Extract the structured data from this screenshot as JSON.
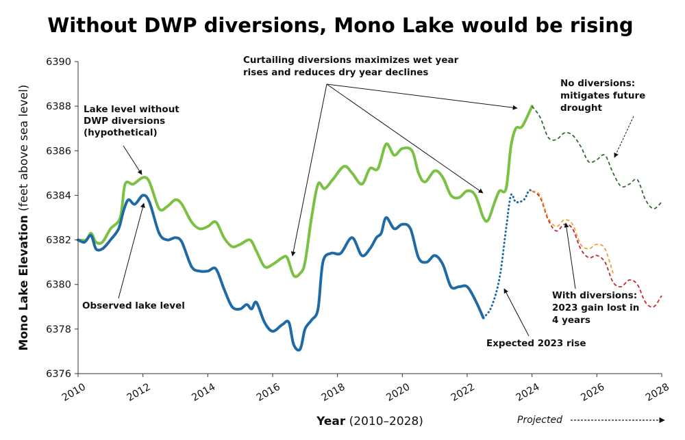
{
  "chart_data": {
    "type": "line",
    "title": "Without DWP diversions, Mono Lake would be rising",
    "xlabel_bold": "Year",
    "xlabel_rest": " (2010–2028)",
    "ylabel_bold": "Mono Lake Elevation",
    "ylabel_rest": " (feet above sea level)",
    "xlim": [
      2010,
      2028
    ],
    "ylim": [
      6376,
      6390
    ],
    "x_ticks": [
      "2010",
      "2012",
      "2014",
      "2016",
      "2018",
      "2020",
      "2022",
      "2024",
      "2026",
      "2028"
    ],
    "y_ticks": [
      "6376",
      "6378",
      "6380",
      "6382",
      "6384",
      "6386",
      "6388",
      "6390"
    ],
    "projected_label": "Projected",
    "colors": {
      "without_diversions": "#7ac143",
      "observed": "#1f6aa5",
      "projection_no_diversions": "#2e6b2e",
      "projection_with_diversions": "#cc2229",
      "projection_with_diversions_alt": "#f0a030"
    },
    "series": [
      {
        "key": "without",
        "style": "solid",
        "values": [
          [
            2010.0,
            6382.0
          ],
          [
            2010.25,
            6382.0
          ],
          [
            2010.4,
            6382.3
          ],
          [
            2010.55,
            6381.9
          ],
          [
            2010.75,
            6381.9
          ],
          [
            2011.0,
            6382.5
          ],
          [
            2011.3,
            6383.0
          ],
          [
            2011.45,
            6384.5
          ],
          [
            2011.7,
            6384.5
          ],
          [
            2012.0,
            6384.8
          ],
          [
            2012.2,
            6384.6
          ],
          [
            2012.5,
            6383.4
          ],
          [
            2012.75,
            6383.5
          ],
          [
            2013.0,
            6383.8
          ],
          [
            2013.2,
            6383.6
          ],
          [
            2013.5,
            6382.8
          ],
          [
            2013.75,
            6382.5
          ],
          [
            2014.0,
            6382.6
          ],
          [
            2014.25,
            6382.8
          ],
          [
            2014.5,
            6382.1
          ],
          [
            2014.75,
            6381.7
          ],
          [
            2015.0,
            6381.8
          ],
          [
            2015.3,
            6382.0
          ],
          [
            2015.5,
            6381.5
          ],
          [
            2015.75,
            6380.8
          ],
          [
            2016.0,
            6380.9
          ],
          [
            2016.3,
            6381.2
          ],
          [
            2016.45,
            6381.2
          ],
          [
            2016.65,
            6380.4
          ],
          [
            2016.85,
            6380.5
          ],
          [
            2017.0,
            6381.0
          ],
          [
            2017.2,
            6383.0
          ],
          [
            2017.4,
            6384.5
          ],
          [
            2017.6,
            6384.3
          ],
          [
            2017.85,
            6384.7
          ],
          [
            2018.2,
            6385.3
          ],
          [
            2018.45,
            6385.0
          ],
          [
            2018.75,
            6384.5
          ],
          [
            2019.0,
            6385.2
          ],
          [
            2019.25,
            6385.2
          ],
          [
            2019.5,
            6386.3
          ],
          [
            2019.75,
            6385.8
          ],
          [
            2020.0,
            6386.1
          ],
          [
            2020.3,
            6386.0
          ],
          [
            2020.5,
            6385.0
          ],
          [
            2020.7,
            6384.6
          ],
          [
            2021.0,
            6385.1
          ],
          [
            2021.25,
            6384.8
          ],
          [
            2021.5,
            6384.0
          ],
          [
            2021.75,
            6383.9
          ],
          [
            2022.0,
            6384.2
          ],
          [
            2022.25,
            6384.0
          ],
          [
            2022.5,
            6383.0
          ],
          [
            2022.65,
            6382.9
          ],
          [
            2022.85,
            6383.7
          ],
          [
            2023.0,
            6384.2
          ],
          [
            2023.2,
            6384.3
          ],
          [
            2023.35,
            6386.2
          ],
          [
            2023.5,
            6387.0
          ],
          [
            2023.7,
            6387.1
          ],
          [
            2024.0,
            6388.0
          ]
        ]
      },
      {
        "key": "observed",
        "style": "solid",
        "values": [
          [
            2010.0,
            6382.0
          ],
          [
            2010.2,
            6381.9
          ],
          [
            2010.4,
            6382.2
          ],
          [
            2010.55,
            6381.6
          ],
          [
            2010.75,
            6381.6
          ],
          [
            2011.0,
            6382.0
          ],
          [
            2011.25,
            6382.5
          ],
          [
            2011.4,
            6383.3
          ],
          [
            2011.55,
            6383.8
          ],
          [
            2011.75,
            6383.6
          ],
          [
            2012.0,
            6384.0
          ],
          [
            2012.2,
            6383.7
          ],
          [
            2012.5,
            6382.3
          ],
          [
            2012.75,
            6382.0
          ],
          [
            2013.0,
            6382.1
          ],
          [
            2013.2,
            6381.9
          ],
          [
            2013.5,
            6380.8
          ],
          [
            2013.75,
            6380.6
          ],
          [
            2014.0,
            6380.6
          ],
          [
            2014.25,
            6380.7
          ],
          [
            2014.5,
            6379.8
          ],
          [
            2014.75,
            6379.0
          ],
          [
            2015.0,
            6378.9
          ],
          [
            2015.2,
            6379.1
          ],
          [
            2015.35,
            6378.9
          ],
          [
            2015.5,
            6379.2
          ],
          [
            2015.75,
            6378.3
          ],
          [
            2016.0,
            6377.9
          ],
          [
            2016.3,
            6378.2
          ],
          [
            2016.5,
            6378.3
          ],
          [
            2016.65,
            6377.3
          ],
          [
            2016.85,
            6377.1
          ],
          [
            2017.0,
            6378.0
          ],
          [
            2017.2,
            6378.4
          ],
          [
            2017.4,
            6378.9
          ],
          [
            2017.55,
            6381.0
          ],
          [
            2017.8,
            6381.4
          ],
          [
            2018.1,
            6381.4
          ],
          [
            2018.45,
            6382.1
          ],
          [
            2018.75,
            6381.3
          ],
          [
            2019.0,
            6381.6
          ],
          [
            2019.2,
            6382.1
          ],
          [
            2019.35,
            6382.3
          ],
          [
            2019.5,
            6383.0
          ],
          [
            2019.75,
            6382.5
          ],
          [
            2020.0,
            6382.7
          ],
          [
            2020.25,
            6382.5
          ],
          [
            2020.5,
            6381.2
          ],
          [
            2020.75,
            6381.0
          ],
          [
            2021.0,
            6381.3
          ],
          [
            2021.25,
            6380.9
          ],
          [
            2021.5,
            6379.9
          ],
          [
            2021.75,
            6379.9
          ],
          [
            2022.0,
            6379.9
          ],
          [
            2022.25,
            6379.3
          ],
          [
            2022.5,
            6378.5
          ]
        ]
      },
      {
        "key": "expected_rise",
        "style": "dotted",
        "values": [
          [
            2022.5,
            6378.5
          ],
          [
            2022.75,
            6379.0
          ],
          [
            2023.0,
            6380.3
          ],
          [
            2023.2,
            6382.5
          ],
          [
            2023.35,
            6384.0
          ],
          [
            2023.5,
            6383.7
          ],
          [
            2023.75,
            6383.8
          ],
          [
            2023.9,
            6384.2
          ],
          [
            2024.0,
            6384.2
          ]
        ]
      },
      {
        "key": "projection_no_diversions",
        "style": "dashed",
        "values": [
          [
            2024.0,
            6388.0
          ],
          [
            2024.25,
            6387.5
          ],
          [
            2024.5,
            6386.6
          ],
          [
            2024.75,
            6386.5
          ],
          [
            2025.0,
            6386.8
          ],
          [
            2025.25,
            6386.7
          ],
          [
            2025.5,
            6386.2
          ],
          [
            2025.75,
            6385.5
          ],
          [
            2026.0,
            6385.6
          ],
          [
            2026.25,
            6385.8
          ],
          [
            2026.5,
            6385.0
          ],
          [
            2026.75,
            6384.4
          ],
          [
            2027.0,
            6384.5
          ],
          [
            2027.25,
            6384.7
          ],
          [
            2027.5,
            6383.8
          ],
          [
            2027.75,
            6383.4
          ],
          [
            2028.0,
            6383.7
          ]
        ]
      },
      {
        "key": "projection_with_diversions",
        "style": "dashed",
        "values": [
          [
            2024.0,
            6384.2
          ],
          [
            2024.25,
            6383.9
          ],
          [
            2024.5,
            6382.9
          ],
          [
            2024.75,
            6382.4
          ],
          [
            2025.0,
            6382.7
          ],
          [
            2025.25,
            6382.5
          ],
          [
            2025.5,
            6381.6
          ],
          [
            2025.75,
            6381.2
          ],
          [
            2026.0,
            6381.3
          ],
          [
            2026.25,
            6381.0
          ],
          [
            2026.5,
            6380.1
          ],
          [
            2026.75,
            6379.9
          ],
          [
            2027.0,
            6380.2
          ],
          [
            2027.25,
            6380.0
          ],
          [
            2027.5,
            6379.2
          ],
          [
            2027.75,
            6379.0
          ],
          [
            2028.0,
            6379.5
          ]
        ]
      },
      {
        "key": "projection_with_diversions_alt",
        "style": "dashed",
        "values": [
          [
            2024.0,
            6384.2
          ],
          [
            2024.25,
            6384.0
          ],
          [
            2024.5,
            6383.0
          ],
          [
            2024.75,
            6382.6
          ],
          [
            2025.0,
            6382.9
          ],
          [
            2025.25,
            6382.7
          ],
          [
            2025.5,
            6381.8
          ],
          [
            2025.75,
            6381.6
          ],
          [
            2026.0,
            6381.8
          ],
          [
            2026.25,
            6381.6
          ],
          [
            2026.5,
            6380.5
          ]
        ]
      }
    ],
    "annotations": [
      {
        "key": "without",
        "lines": [
          "Lake level without",
          "DWP diversions",
          "(hypothetical)"
        ]
      },
      {
        "key": "observed",
        "lines": [
          "Observed lake level"
        ]
      },
      {
        "key": "curtailing",
        "lines": [
          "Curtailing diversions maximizes wet year",
          "rises and reduces dry year declines"
        ]
      },
      {
        "key": "no_div",
        "lines": [
          "No diversions:",
          "mitigates future",
          "drought"
        ]
      },
      {
        "key": "with_div",
        "lines": [
          "With diversions:",
          "2023 gain lost in",
          "4 years"
        ]
      },
      {
        "key": "expected",
        "lines": [
          "Expected 2023 rise"
        ]
      }
    ]
  }
}
